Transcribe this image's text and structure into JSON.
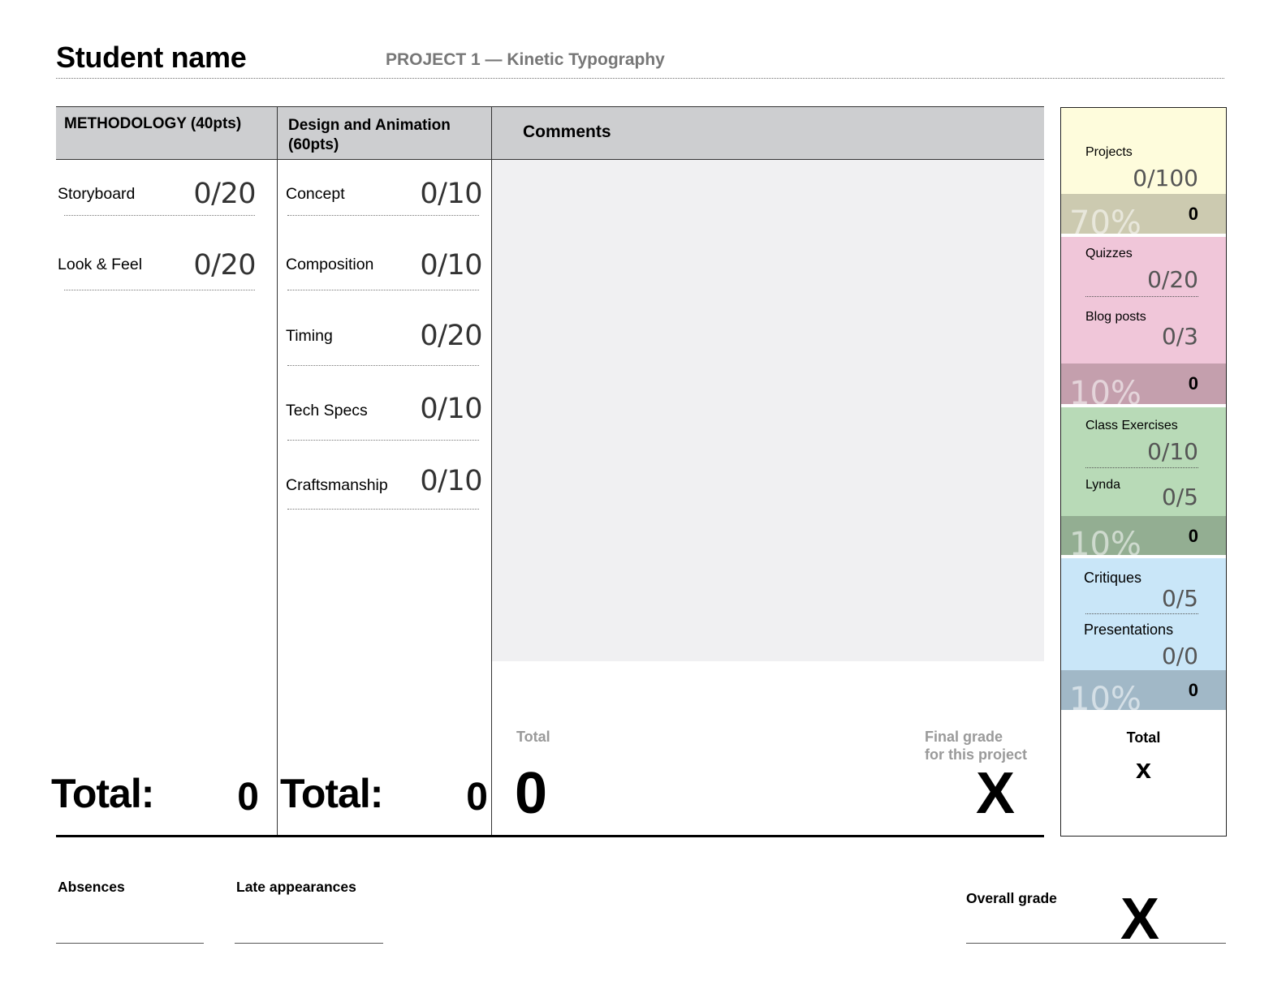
{
  "header": {
    "student_name": "Student name",
    "project_title": "PROJECT 1 — Kinetic Typography"
  },
  "methodology": {
    "heading": "METHODOLOGY (40pts)",
    "items": [
      {
        "label": "Storyboard",
        "score": "0/20"
      },
      {
        "label": "Look & Feel",
        "score": "0/20"
      }
    ],
    "total_label": "Total:",
    "total_value": "0"
  },
  "design": {
    "heading_line1": "Design and Animation",
    "heading_line2": "(60pts)",
    "items": [
      {
        "label": "Concept",
        "score": "0/10"
      },
      {
        "label": "Composition",
        "score": "0/10"
      },
      {
        "label": "Timing",
        "score": "0/20"
      },
      {
        "label": "Tech Specs",
        "score": "0/10"
      },
      {
        "label": "Craftsmanship",
        "score": "0/10"
      }
    ],
    "total_label": "Total:",
    "total_value": "0"
  },
  "comments": {
    "heading": "Comments",
    "total_label": "Total",
    "total_value": "0",
    "final_label_line1": "Final grade",
    "final_label_line2": "for this project",
    "final_value": "X"
  },
  "panel": {
    "projects": {
      "label": "Projects",
      "score": "0/100",
      "percent": "70%",
      "subtotal": "0"
    },
    "quizzes": {
      "label": "Quizzes",
      "score": "0/20"
    },
    "blog": {
      "label": "Blog posts",
      "score": "0/3",
      "percent": "10%",
      "subtotal": "0"
    },
    "exercises": {
      "label": "Class Exercises",
      "score": "0/10"
    },
    "lynda": {
      "label": "Lynda",
      "score": "0/5",
      "percent": "10%",
      "subtotal": "0"
    },
    "critiques": {
      "label": "Critiques",
      "score": "0/5"
    },
    "presentations": {
      "label": "Presentations",
      "score": "0/0",
      "percent": "10%",
      "subtotal": "0"
    },
    "total_label": "Total",
    "total_value": "x",
    "colors": {
      "yellow": "#fefcdc",
      "yellow_dark": "#cccab0",
      "pink": "#f0c6d9",
      "pink_dark": "#c49fad",
      "green": "#b8dab7",
      "green_dark": "#93ae92",
      "blue": "#c9e6f8",
      "blue_dark": "#a1b8c7"
    }
  },
  "footer": {
    "absences_label": "Absences",
    "late_label": "Late appearances",
    "overall_label": "Overall grade",
    "overall_value": "X"
  }
}
